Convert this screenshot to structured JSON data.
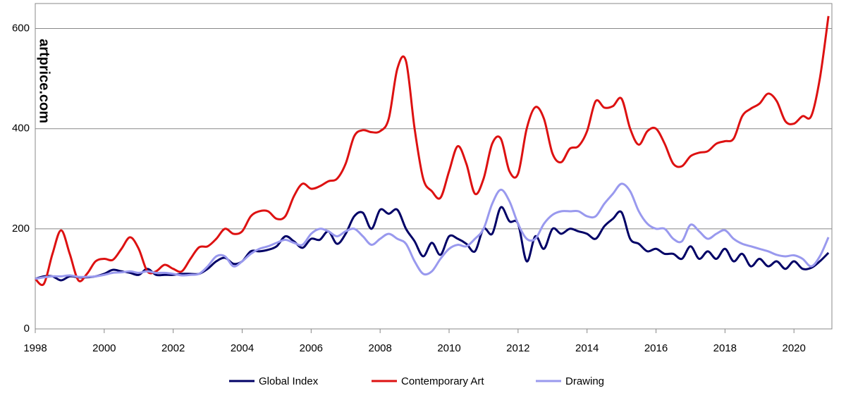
{
  "chart_data": {
    "type": "line",
    "watermark": "artprice.com",
    "x": [
      1998,
      1998.25,
      1998.5,
      1998.75,
      1999,
      1999.25,
      1999.5,
      1999.75,
      2000,
      2000.25,
      2000.5,
      2000.75,
      2001,
      2001.25,
      2001.5,
      2001.75,
      2002,
      2002.25,
      2002.5,
      2002.75,
      2003,
      2003.25,
      2003.5,
      2003.75,
      2004,
      2004.25,
      2004.5,
      2004.75,
      2005,
      2005.25,
      2005.5,
      2005.75,
      2006,
      2006.25,
      2006.5,
      2006.75,
      2007,
      2007.25,
      2007.5,
      2007.75,
      2008,
      2008.25,
      2008.5,
      2008.75,
      2009,
      2009.25,
      2009.5,
      2009.75,
      2010,
      2010.25,
      2010.5,
      2010.75,
      2011,
      2011.25,
      2011.5,
      2011.75,
      2012,
      2012.25,
      2012.5,
      2012.75,
      2013,
      2013.25,
      2013.5,
      2013.75,
      2014,
      2014.25,
      2014.5,
      2014.75,
      2015,
      2015.25,
      2015.5,
      2015.75,
      2016,
      2016.25,
      2016.5,
      2016.75,
      2017,
      2017.25,
      2017.5,
      2017.75,
      2018,
      2018.25,
      2018.5,
      2018.75,
      2019,
      2019.25,
      2019.5,
      2019.75,
      2020,
      2020.25,
      2020.5,
      2020.75,
      2021
    ],
    "series": [
      {
        "name": "Global Index",
        "color": "#000066",
        "values": [
          100,
          105,
          105,
          97,
          105,
          103,
          103,
          105,
          110,
          118,
          115,
          112,
          108,
          120,
          108,
          108,
          108,
          110,
          110,
          110,
          120,
          135,
          142,
          130,
          135,
          155,
          155,
          158,
          165,
          185,
          175,
          162,
          180,
          178,
          195,
          170,
          190,
          225,
          232,
          200,
          238,
          230,
          238,
          200,
          175,
          145,
          172,
          148,
          185,
          180,
          170,
          155,
          200,
          190,
          243,
          215,
          210,
          135,
          185,
          160,
          200,
          190,
          200,
          195,
          190,
          180,
          205,
          220,
          233,
          180,
          170,
          155,
          160,
          150,
          150,
          140,
          165,
          140,
          155,
          140,
          160,
          135,
          150,
          125,
          140,
          125,
          135,
          120,
          135,
          120,
          122,
          135,
          152
        ]
      },
      {
        "name": "Contemporary Art",
        "color": "#dd1111",
        "values": [
          100,
          90,
          150,
          197,
          150,
          97,
          110,
          135,
          140,
          138,
          160,
          183,
          160,
          115,
          115,
          128,
          120,
          115,
          140,
          163,
          165,
          180,
          200,
          190,
          195,
          225,
          235,
          235,
          220,
          225,
          265,
          290,
          280,
          285,
          295,
          300,
          330,
          385,
          397,
          393,
          395,
          420,
          520,
          535,
          400,
          300,
          275,
          262,
          315,
          365,
          330,
          270,
          300,
          370,
          380,
          315,
          310,
          400,
          443,
          420,
          350,
          333,
          360,
          365,
          395,
          455,
          442,
          445,
          460,
          400,
          368,
          395,
          400,
          370,
          330,
          325,
          345,
          352,
          355,
          370,
          375,
          380,
          425,
          440,
          450,
          470,
          455,
          415,
          410,
          425,
          425,
          500,
          625
        ]
      },
      {
        "name": "Drawing",
        "color": "#9999ee",
        "values": [
          100,
          103,
          105,
          105,
          107,
          104,
          104,
          105,
          108,
          112,
          113,
          115,
          112,
          115,
          112,
          112,
          110,
          107,
          108,
          110,
          125,
          145,
          145,
          125,
          135,
          150,
          160,
          165,
          172,
          178,
          172,
          168,
          190,
          200,
          195,
          185,
          195,
          200,
          185,
          168,
          180,
          190,
          180,
          170,
          135,
          110,
          115,
          140,
          160,
          168,
          165,
          180,
          200,
          250,
          278,
          255,
          210,
          180,
          180,
          210,
          228,
          235,
          235,
          235,
          225,
          225,
          250,
          270,
          290,
          275,
          235,
          210,
          200,
          200,
          180,
          175,
          208,
          195,
          180,
          190,
          197,
          180,
          170,
          165,
          160,
          155,
          148,
          145,
          147,
          140,
          125,
          145,
          183
        ]
      }
    ],
    "xlim": [
      1998,
      2021.1
    ],
    "ylim": [
      0,
      650
    ],
    "xticks": [
      1998,
      2000,
      2002,
      2004,
      2006,
      2008,
      2010,
      2012,
      2014,
      2016,
      2018,
      2020
    ],
    "yticks": [
      0,
      200,
      400,
      600
    ],
    "grid": true
  }
}
